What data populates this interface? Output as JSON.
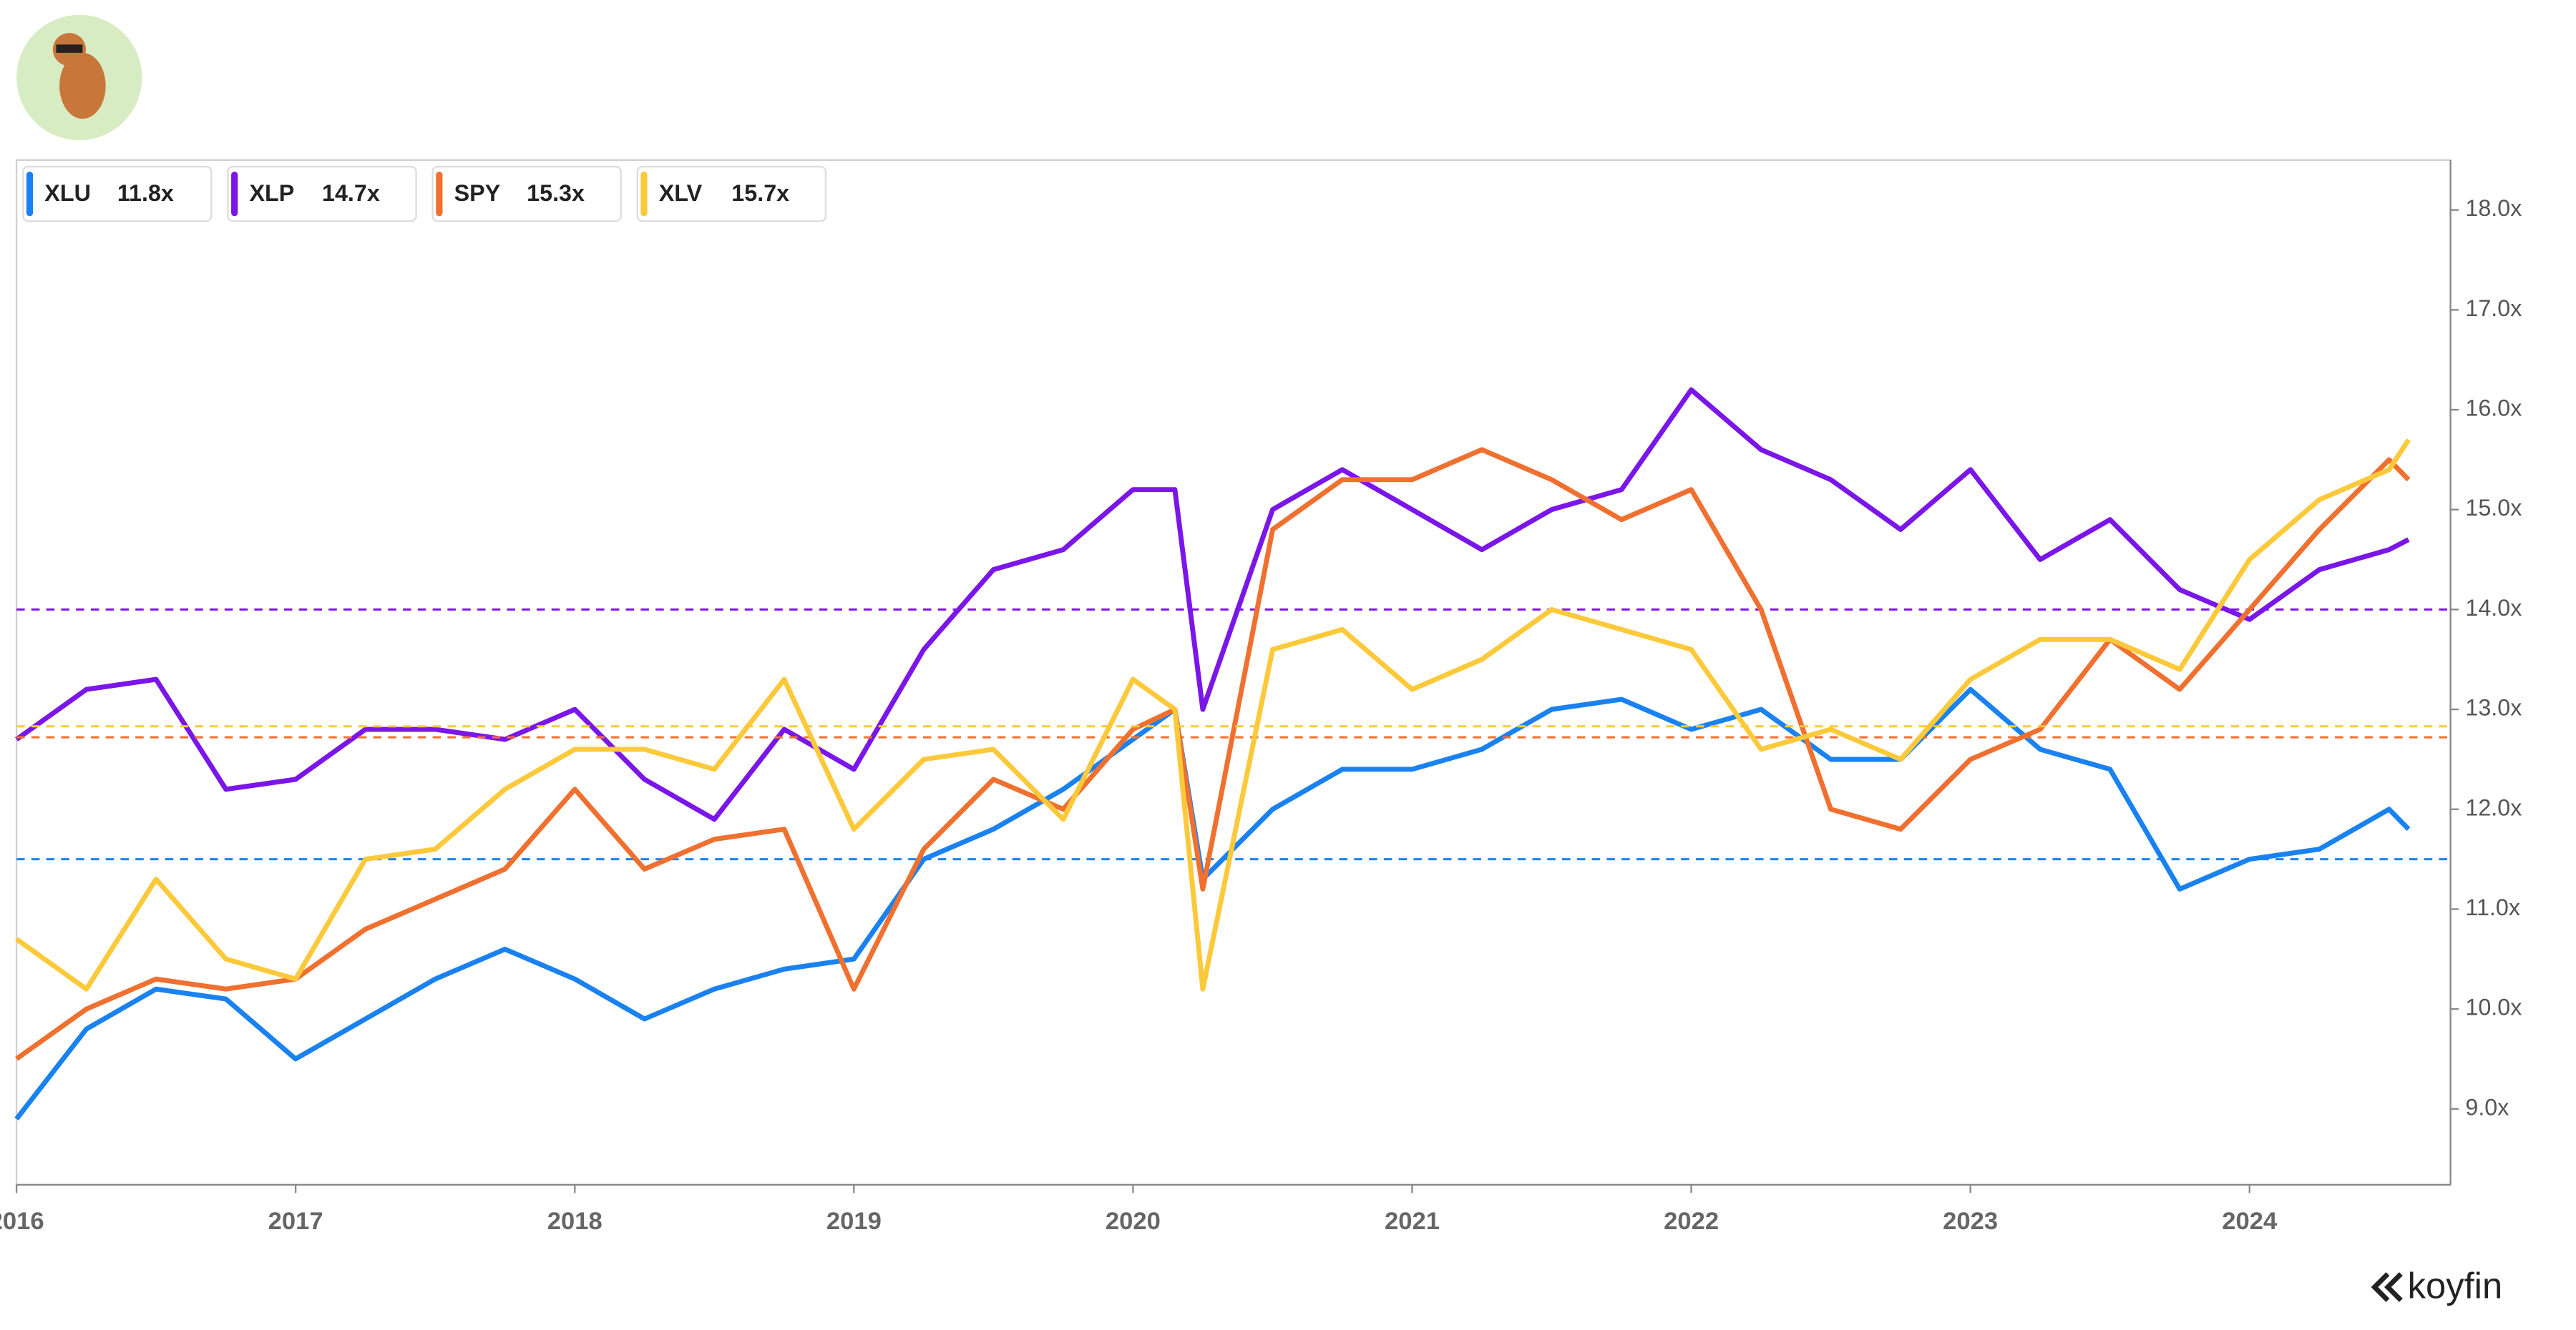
{
  "chart_data": {
    "type": "line",
    "x": [
      2016.0,
      2016.25,
      2016.5,
      2016.75,
      2017.0,
      2017.25,
      2017.5,
      2017.75,
      2018.0,
      2018.25,
      2018.5,
      2018.75,
      2019.0,
      2019.25,
      2019.5,
      2019.75,
      2020.0,
      2020.15,
      2020.25,
      2020.5,
      2020.75,
      2021.0,
      2021.25,
      2021.5,
      2021.75,
      2022.0,
      2022.25,
      2022.5,
      2022.75,
      2023.0,
      2023.25,
      2023.5,
      2023.75,
      2024.0,
      2024.25,
      2024.5,
      2024.57
    ],
    "series": [
      {
        "name": "XLU",
        "current_label": "11.8x",
        "color": "#1a82f0",
        "average": 11.5,
        "values": [
          8.9,
          9.8,
          10.2,
          10.1,
          9.5,
          9.9,
          10.3,
          10.6,
          10.3,
          9.9,
          10.2,
          10.4,
          10.5,
          11.5,
          11.8,
          12.2,
          12.7,
          13.0,
          11.3,
          12.0,
          12.4,
          12.4,
          12.6,
          13.0,
          13.1,
          12.8,
          13.0,
          12.5,
          12.5,
          13.2,
          12.6,
          12.4,
          11.2,
          11.5,
          11.6,
          12.0,
          11.8
        ]
      },
      {
        "name": "XLP",
        "current_label": "14.7x",
        "color": "#7b16e8",
        "average": 14.0,
        "values": [
          12.7,
          13.2,
          13.3,
          12.2,
          12.3,
          12.8,
          12.8,
          12.7,
          13.0,
          12.3,
          11.9,
          12.8,
          12.4,
          13.6,
          14.4,
          14.6,
          15.2,
          15.2,
          13.0,
          15.0,
          15.4,
          15.0,
          14.6,
          15.0,
          15.2,
          16.2,
          15.6,
          15.3,
          14.8,
          15.4,
          14.5,
          14.9,
          14.2,
          13.9,
          14.4,
          14.6,
          14.7
        ]
      },
      {
        "name": "SPY",
        "current_label": "15.3x",
        "color": "#f07030",
        "average": 12.72,
        "values": [
          9.5,
          10.0,
          10.3,
          10.2,
          10.3,
          10.8,
          11.1,
          11.4,
          12.2,
          11.4,
          11.7,
          11.8,
          10.2,
          11.6,
          12.3,
          12.0,
          12.8,
          13.0,
          11.2,
          14.8,
          15.3,
          15.3,
          15.6,
          15.3,
          14.9,
          15.2,
          14.0,
          12.0,
          11.8,
          12.5,
          12.8,
          13.7,
          13.2,
          14.0,
          14.8,
          15.5,
          15.3
        ]
      },
      {
        "name": "XLV",
        "current_label": "15.7x",
        "color": "#fcc93a",
        "average": 12.83,
        "values": [
          10.7,
          10.2,
          11.3,
          10.5,
          10.3,
          11.5,
          11.6,
          12.2,
          12.6,
          12.6,
          12.4,
          13.3,
          11.8,
          12.5,
          12.6,
          11.9,
          13.3,
          13.0,
          10.2,
          13.6,
          13.8,
          13.2,
          13.5,
          14.0,
          13.8,
          13.6,
          12.6,
          12.8,
          12.5,
          13.3,
          13.7,
          13.7,
          13.4,
          14.5,
          15.1,
          15.4,
          15.7
        ]
      }
    ],
    "xlim": [
      2016.0,
      2024.72
    ],
    "xticks": [
      2016,
      2017,
      2018,
      2019,
      2020,
      2021,
      2022,
      2023,
      2024
    ],
    "ylim": [
      8.24,
      18.5
    ],
    "yticks": [
      {
        "value": 9,
        "label": "9.0x"
      },
      {
        "value": 10,
        "label": "10.0x"
      },
      {
        "value": 11,
        "label": "11.0x"
      },
      {
        "value": 12,
        "label": "12.0x"
      },
      {
        "value": 13,
        "label": "13.0x"
      },
      {
        "value": 14,
        "label": "14.0x"
      },
      {
        "value": 15,
        "label": "15.0x"
      },
      {
        "value": 16,
        "label": "16.0x"
      },
      {
        "value": 17,
        "label": "17.0x"
      },
      {
        "value": 18,
        "label": "18.0x"
      }
    ],
    "brand": "koyfin"
  }
}
